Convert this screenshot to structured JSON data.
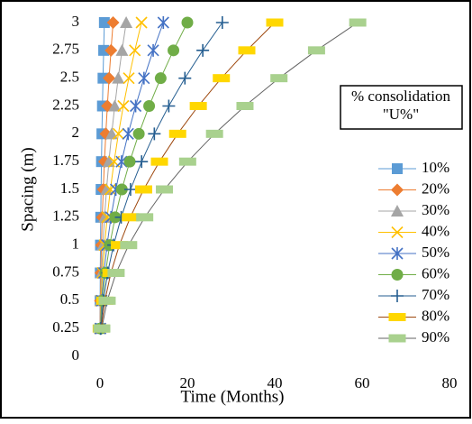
{
  "chart_data": {
    "type": "line",
    "y_label": "Spacing (m)",
    "x_label": "Time (Months)",
    "legend_title": "% consolidation \"U%\"",
    "legend_position": "right",
    "y": [
      0.25,
      0.5,
      0.75,
      1,
      1.25,
      1.5,
      1.75,
      2,
      2.25,
      2.5,
      2.75,
      3
    ],
    "xlim": [
      0,
      80
    ],
    "xticks": [
      0,
      20,
      40,
      60,
      80
    ],
    "ylim": [
      0,
      3
    ],
    "yticks": [
      0,
      0.25,
      0.5,
      0.75,
      1,
      1.25,
      1.5,
      1.75,
      2,
      2.25,
      2.5,
      2.75,
      3
    ],
    "series": [
      {
        "name": "10%",
        "color": "#5b9bd5",
        "marker_color": "#5b9bd5",
        "marker": "square",
        "x": [
          0.01,
          0.03,
          0.06,
          0.11,
          0.17,
          0.25,
          0.34,
          0.44,
          0.56,
          0.69,
          0.84,
          1
        ]
      },
      {
        "name": "20%",
        "color": "#ed7d31",
        "marker_color": "#ed7d31",
        "marker": "diamond",
        "x": [
          0.02,
          0.08,
          0.19,
          0.33,
          0.52,
          0.75,
          1.02,
          1.33,
          1.69,
          2.08,
          2.52,
          3
        ]
      },
      {
        "name": "30%",
        "color": "#a5a5a5",
        "marker_color": "#a5a5a5",
        "marker": "triangle",
        "x": [
          0.04,
          0.17,
          0.38,
          0.67,
          1.04,
          1.5,
          2.04,
          2.67,
          3.38,
          4.17,
          5.04,
          6
        ]
      },
      {
        "name": "40%",
        "color": "#ffc000",
        "marker_color": "#ffc000",
        "marker": "x",
        "x": [
          0.07,
          0.26,
          0.59,
          1.06,
          1.65,
          2.38,
          3.23,
          4.22,
          5.34,
          6.6,
          7.98,
          9.5
        ]
      },
      {
        "name": "50%",
        "color": "#4472c4",
        "marker_color": "#4472c4",
        "marker": "star",
        "x": [
          0.1,
          0.4,
          0.91,
          1.61,
          2.52,
          3.63,
          4.93,
          6.44,
          8.16,
          10.07,
          12.18,
          14.5
        ]
      },
      {
        "name": "60%",
        "color": "#70ad47",
        "marker_color": "#70ad47",
        "marker": "circle",
        "x": [
          0.14,
          0.56,
          1.25,
          2.22,
          3.47,
          5,
          6.81,
          8.89,
          11.25,
          13.89,
          16.81,
          20
        ]
      },
      {
        "name": "70%",
        "color": "#255e91",
        "marker_color": "#255e91",
        "marker": "plus",
        "x": [
          0.19,
          0.78,
          1.75,
          3.11,
          4.86,
          7,
          9.53,
          12.44,
          15.75,
          19.44,
          23.53,
          28
        ]
      },
      {
        "name": "80%",
        "color": "#9e480e",
        "marker_color": "#ffd700",
        "marker": "dash",
        "x": [
          0.28,
          1.11,
          2.5,
          4.44,
          6.94,
          10,
          13.61,
          17.78,
          22.5,
          27.78,
          33.61,
          40
        ]
      },
      {
        "name": "90%",
        "color": "#636363",
        "marker_color": "#a9d18e",
        "marker": "dash",
        "x": [
          0.41,
          1.64,
          3.69,
          6.56,
          10.24,
          14.75,
          20.07,
          26.22,
          33.19,
          40.97,
          49.57,
          59
        ]
      }
    ]
  }
}
